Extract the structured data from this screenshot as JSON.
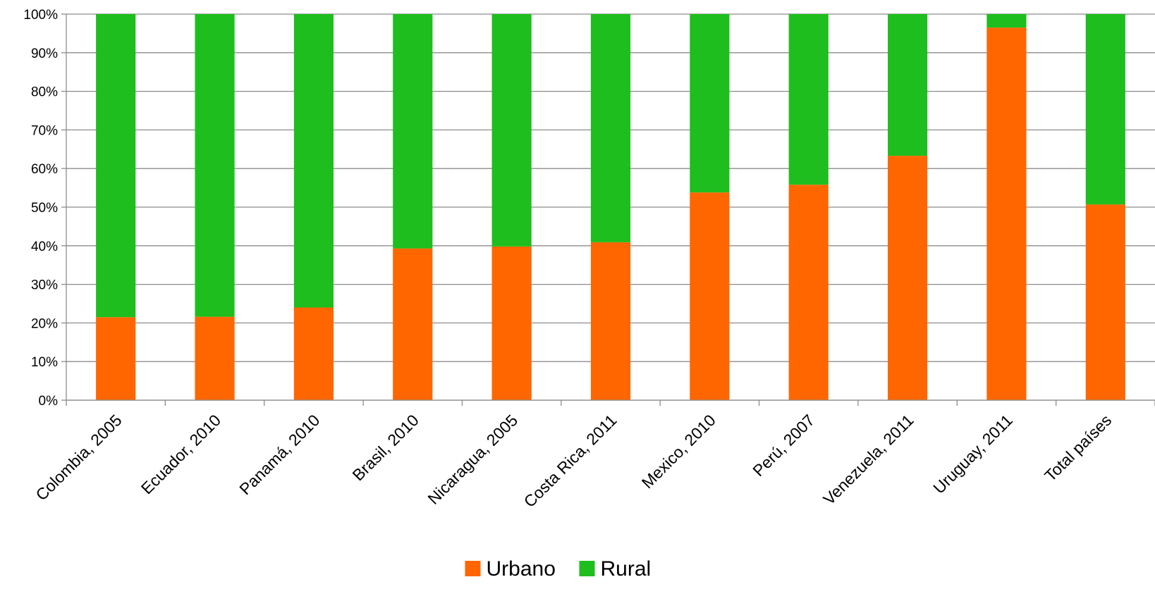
{
  "chart_data": {
    "type": "bar",
    "stacked": true,
    "stack_mode": "percent",
    "categories": [
      "Colombia, 2005",
      "Ecuador, 2010",
      "Panamá, 2010",
      "Brasil, 2010",
      "Nicaragua, 2005",
      "Costa Rica, 2011",
      "Mexico, 2010",
      "Perú, 2007",
      "Venezuela, 2011",
      "Uruguay, 2011",
      "Total países"
    ],
    "series": [
      {
        "name": "Urbano",
        "color": "#FF6600",
        "values": [
          21.5,
          21.6,
          24.0,
          39.3,
          39.8,
          40.9,
          53.8,
          55.8,
          63.3,
          96.5,
          50.7
        ]
      },
      {
        "name": "Rural",
        "color": "#1EBE1E",
        "values": [
          78.5,
          78.4,
          76.0,
          60.7,
          60.2,
          59.1,
          46.2,
          44.2,
          36.7,
          3.5,
          49.3
        ]
      }
    ],
    "ylim": [
      0,
      100
    ],
    "yticks": [
      "0%",
      "10%",
      "20%",
      "30%",
      "40%",
      "50%",
      "60%",
      "70%",
      "80%",
      "90%",
      "100%"
    ],
    "grid": true,
    "legend_position": "bottom",
    "title": "",
    "xlabel": "",
    "ylabel": ""
  }
}
